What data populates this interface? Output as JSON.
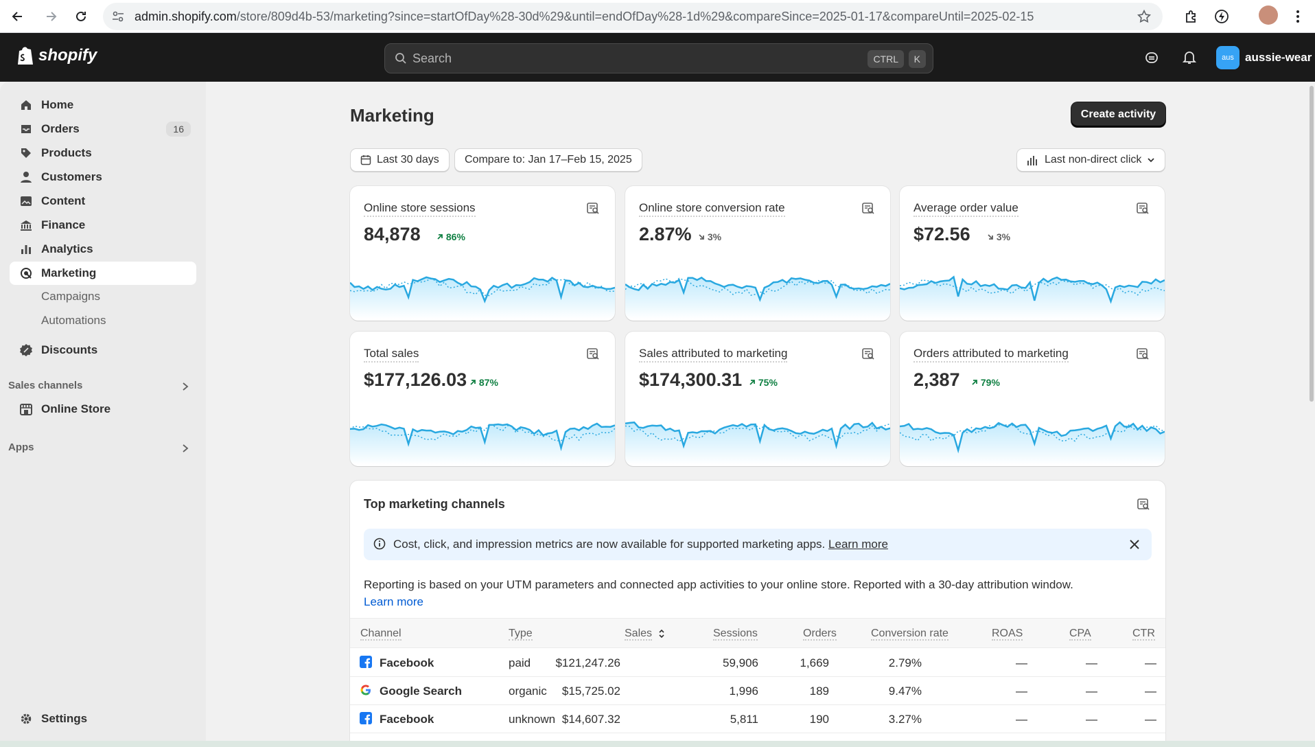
{
  "browser": {
    "url_host": "admin.shopify.com",
    "url_path": "/store/809d4b-53/marketing?since=startOfDay%28-30d%29&until=endOfDay%28-1d%29&compareSince=2025-01-17&compareUntil=2025-02-15"
  },
  "topbar": {
    "logo_text": "shopify",
    "search_placeholder": "Search",
    "shortcut_ctrl": "CTRL",
    "shortcut_key": "K",
    "store_badge": "aus",
    "store_name": "aussie-wear"
  },
  "sidebar": {
    "items": [
      {
        "label": "Home",
        "icon": "home-icon"
      },
      {
        "label": "Orders",
        "icon": "inbox-icon",
        "badge": "16"
      },
      {
        "label": "Products",
        "icon": "tag-icon"
      },
      {
        "label": "Customers",
        "icon": "person-icon"
      },
      {
        "label": "Content",
        "icon": "image-icon"
      },
      {
        "label": "Finance",
        "icon": "bank-icon"
      },
      {
        "label": "Analytics",
        "icon": "bar-chart-icon"
      },
      {
        "label": "Marketing",
        "icon": "target-icon",
        "active": true
      }
    ],
    "marketing_sub": [
      "Campaigns",
      "Automations"
    ],
    "discounts": "Discounts",
    "sales_channels_heading": "Sales channels",
    "online_store": "Online Store",
    "apps_heading": "Apps",
    "settings": "Settings"
  },
  "page": {
    "title": "Marketing",
    "create_button": "Create activity",
    "date_range": "Last 30 days",
    "compare": "Compare to: Jan 17–Feb 15, 2025",
    "attribution": "Last non-direct click"
  },
  "metrics": [
    {
      "title": "Online store sessions",
      "value": "84,878",
      "change": "86%",
      "direction": "up"
    },
    {
      "title": "Online store conversion rate",
      "value": "2.87%",
      "change": "3%",
      "direction": "down"
    },
    {
      "title": "Average order value",
      "value": "$72.56",
      "change": "3%",
      "direction": "down"
    },
    {
      "title": "Total sales",
      "value": "$177,126.03",
      "change": "87%",
      "direction": "up"
    },
    {
      "title": "Sales attributed to marketing",
      "value": "$174,300.31",
      "change": "75%",
      "direction": "up"
    },
    {
      "title": "Orders attributed to marketing",
      "value": "2,387",
      "change": "79%",
      "direction": "up"
    }
  ],
  "channels": {
    "title": "Top marketing channels",
    "banner_text": "Cost, click, and impression metrics are now available for supported marketing apps.",
    "banner_link": "Learn more",
    "report_text": "Reporting is based on your UTM parameters and connected app activities to your online store. Reported with a 30-day attribution window.",
    "report_link": "Learn more",
    "columns": [
      "Channel",
      "Type",
      "Sales",
      "Sessions",
      "Orders",
      "Conversion rate",
      "ROAS",
      "CPA",
      "CTR"
    ],
    "rows": [
      {
        "channel": "Facebook",
        "icon": "facebook-icon",
        "type": "paid",
        "sales": "$121,247.26",
        "sessions": "59,906",
        "orders": "1,669",
        "conversion": "2.79%",
        "roas": "—",
        "cpa": "—",
        "ctr": "—"
      },
      {
        "channel": "Google Search",
        "icon": "google-icon",
        "type": "organic",
        "sales": "$15,725.02",
        "sessions": "1,996",
        "orders": "189",
        "conversion": "9.47%",
        "roas": "—",
        "cpa": "—",
        "ctr": "—"
      },
      {
        "channel": "Facebook",
        "icon": "facebook-icon",
        "type": "unknown",
        "sales": "$14,607.32",
        "sessions": "5,811",
        "orders": "190",
        "conversion": "3.27%",
        "roas": "—",
        "cpa": "—",
        "ctr": "—"
      }
    ]
  },
  "colors": {
    "accent_blue": "#005bd3",
    "positive_green": "#108043",
    "spark_line": "#29a8e0",
    "dark": "#303030"
  }
}
